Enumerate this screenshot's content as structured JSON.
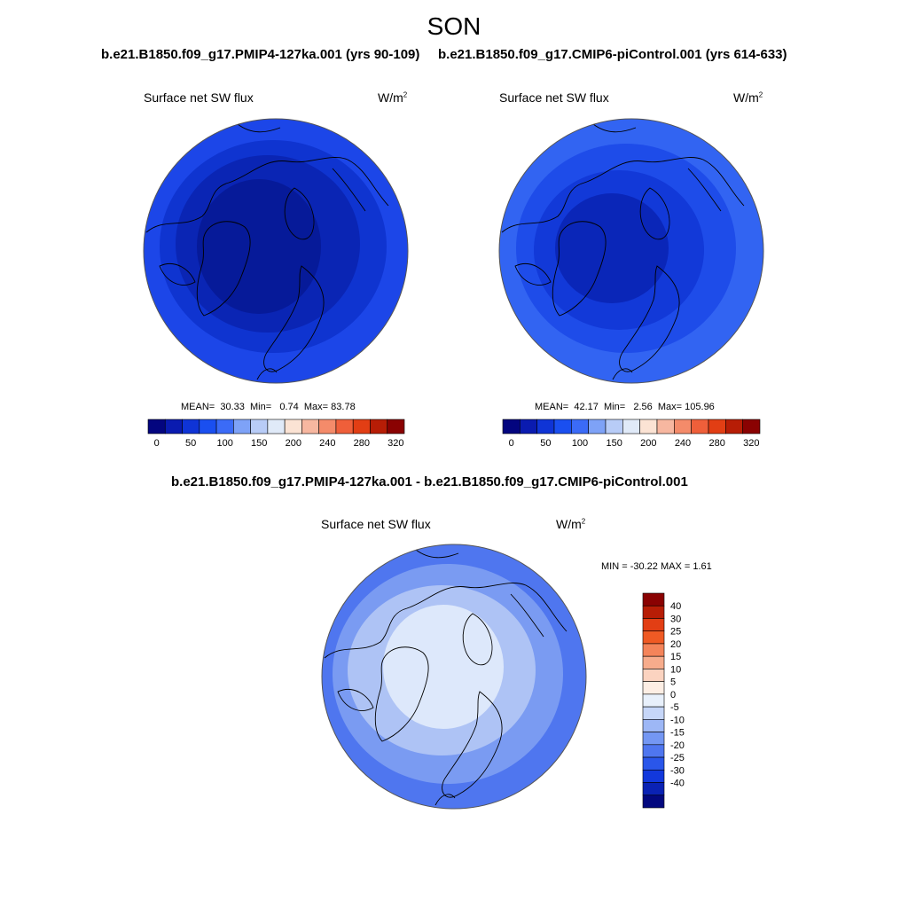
{
  "title": "SON",
  "panels": [
    {
      "case_title": "b.e21.B1850.f09_g17.PMIP4-127ka.001 (yrs 90-109)",
      "variable": "Surface net SW flux",
      "units": "W/m",
      "units_exp": "2",
      "stats": {
        "mean": "30.33",
        "min": "0.74",
        "max": "83.78"
      }
    },
    {
      "case_title": "b.e21.B1850.f09_g17.CMIP6-piControl.001 (yrs 614-633)",
      "variable": "Surface net SW flux",
      "units": "W/m",
      "units_exp": "2",
      "stats": {
        "mean": "42.17",
        "min": "2.56",
        "max": "105.96"
      }
    }
  ],
  "stat_labels": {
    "mean": "MEAN=",
    "min": "Min=",
    "max": "Max="
  },
  "abs_colorbar": {
    "colors": [
      "#03057f",
      "#0a1bb0",
      "#0f34d6",
      "#1a4ff0",
      "#3b6bf7",
      "#7ea2f7",
      "#b8ccf7",
      "#e0eaf8",
      "#fbe3d4",
      "#f7b7a0",
      "#f48b6a",
      "#ef5f3a",
      "#e23e14",
      "#b71d06",
      "#8a0202"
    ],
    "labels": [
      "0",
      "50",
      "100",
      "150",
      "200",
      "240",
      "280",
      "320"
    ]
  },
  "diff": {
    "title": "b.e21.B1850.f09_g17.PMIP4-127ka.001 - b.e21.B1850.f09_g17.CMIP6-piControl.001",
    "variable": "Surface net SW flux",
    "units": "W/m",
    "units_exp": "2",
    "minmax": "MIN = -30.22 MAX =   1.61",
    "colorbar": {
      "colors_top_to_bottom": [
        "#8a0202",
        "#b71d06",
        "#e23e14",
        "#f05a24",
        "#f4845a",
        "#f7ac8c",
        "#fbd3c0",
        "#fdeee4",
        "#e8f0fb",
        "#c6d6f8",
        "#9db7f6",
        "#7497f3",
        "#4f76ef",
        "#2a56ea",
        "#1238dc",
        "#0a22b4",
        "#03087f"
      ],
      "labels": [
        "40",
        "30",
        "25",
        "20",
        "15",
        "10",
        "5",
        "0",
        "-5",
        "-10",
        "-15",
        "-20",
        "-25",
        "-30",
        "-40"
      ]
    }
  },
  "map_colors": {
    "abs1": [
      "#1c46e8",
      "#0f34d0",
      "#0a25b4",
      "#061a99"
    ],
    "abs2": [
      "#3264f2",
      "#1e4ce9",
      "#1239d8",
      "#0a26b8"
    ],
    "diff": [
      "#4f76ef",
      "#7a9bf2",
      "#aec3f5",
      "#dde8fb"
    ]
  }
}
